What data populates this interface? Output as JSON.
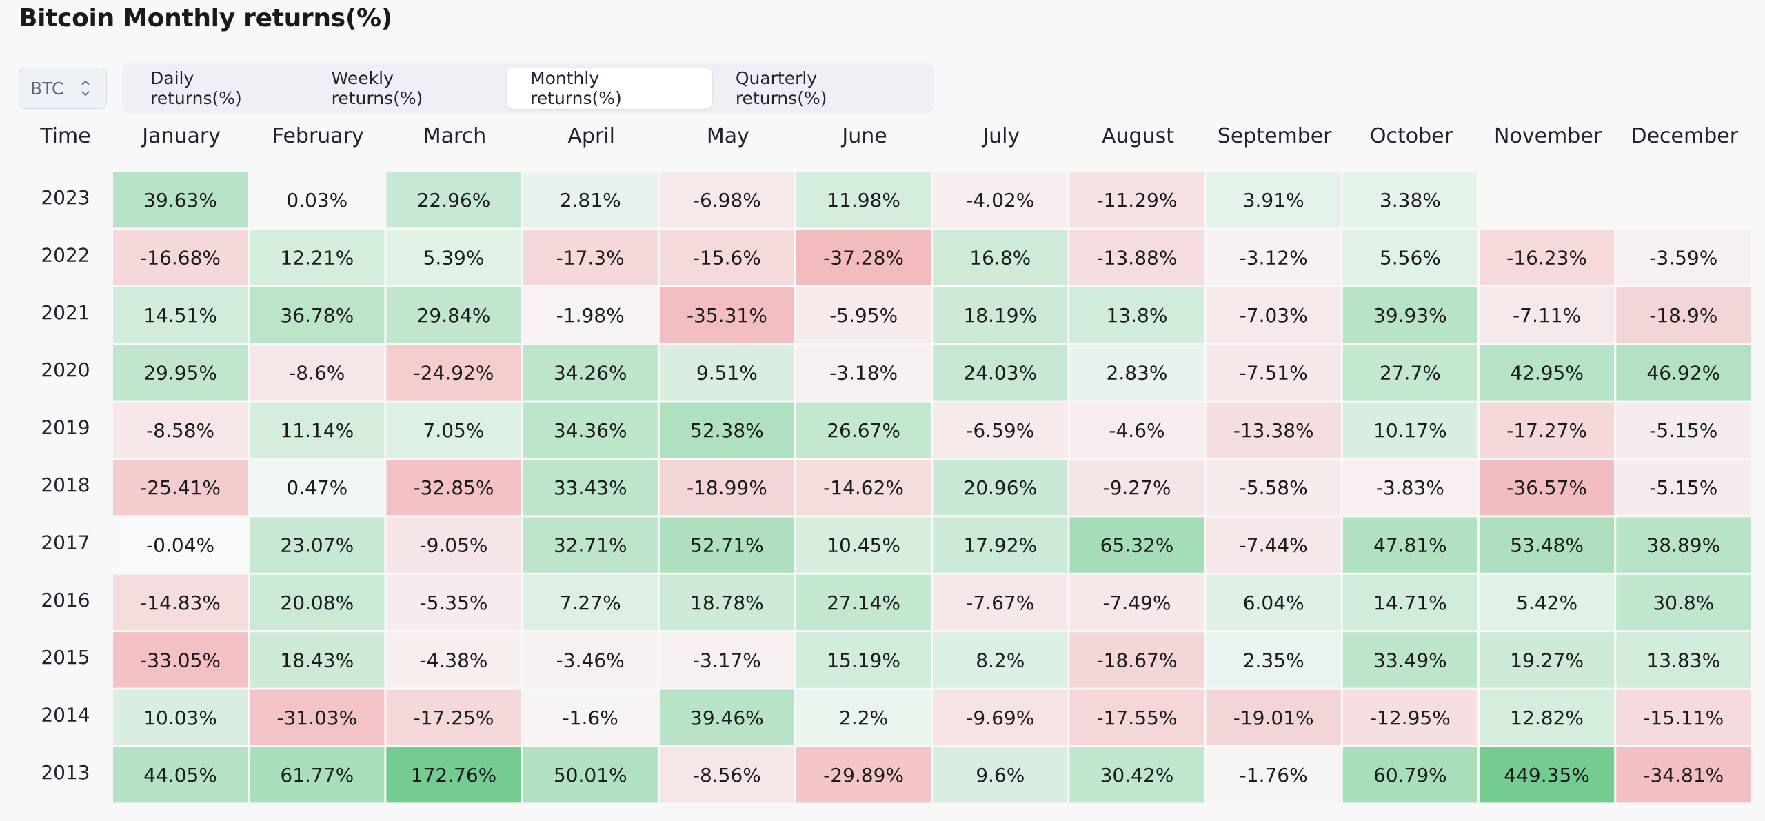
{
  "page": {
    "title": "Bitcoin Monthly returns(%)"
  },
  "asset_selector": {
    "value": "BTC",
    "icon": "chevron-up-down-icon"
  },
  "tabs": [
    {
      "label": "Daily returns(%)",
      "active": false
    },
    {
      "label": "Weekly returns(%)",
      "active": false
    },
    {
      "label": "Monthly returns(%)",
      "active": true
    },
    {
      "label": "Quarterly returns(%)",
      "active": false
    }
  ],
  "chart_data": {
    "type": "heatmap",
    "row_header": "Time",
    "columns": [
      "January",
      "February",
      "March",
      "April",
      "May",
      "June",
      "July",
      "August",
      "September",
      "October",
      "November",
      "December"
    ],
    "rows": [
      {
        "year": "2023",
        "values": [
          "39.63%",
          "0.03%",
          "22.96%",
          "2.81%",
          "-6.98%",
          "11.98%",
          "-4.02%",
          "-11.29%",
          "3.91%",
          "3.38%",
          null,
          null
        ]
      },
      {
        "year": "2022",
        "values": [
          "-16.68%",
          "12.21%",
          "5.39%",
          "-17.3%",
          "-15.6%",
          "-37.28%",
          "16.8%",
          "-13.88%",
          "-3.12%",
          "5.56%",
          "-16.23%",
          "-3.59%"
        ]
      },
      {
        "year": "2021",
        "values": [
          "14.51%",
          "36.78%",
          "29.84%",
          "-1.98%",
          "-35.31%",
          "-5.95%",
          "18.19%",
          "13.8%",
          "-7.03%",
          "39.93%",
          "-7.11%",
          "-18.9%"
        ]
      },
      {
        "year": "2020",
        "values": [
          "29.95%",
          "-8.6%",
          "-24.92%",
          "34.26%",
          "9.51%",
          "-3.18%",
          "24.03%",
          "2.83%",
          "-7.51%",
          "27.7%",
          "42.95%",
          "46.92%"
        ]
      },
      {
        "year": "2019",
        "values": [
          "-8.58%",
          "11.14%",
          "7.05%",
          "34.36%",
          "52.38%",
          "26.67%",
          "-6.59%",
          "-4.6%",
          "-13.38%",
          "10.17%",
          "-17.27%",
          "-5.15%"
        ]
      },
      {
        "year": "2018",
        "values": [
          "-25.41%",
          "0.47%",
          "-32.85%",
          "33.43%",
          "-18.99%",
          "-14.62%",
          "20.96%",
          "-9.27%",
          "-5.58%",
          "-3.83%",
          "-36.57%",
          "-5.15%"
        ]
      },
      {
        "year": "2017",
        "values": [
          "-0.04%",
          "23.07%",
          "-9.05%",
          "32.71%",
          "52.71%",
          "10.45%",
          "17.92%",
          "65.32%",
          "-7.44%",
          "47.81%",
          "53.48%",
          "38.89%"
        ]
      },
      {
        "year": "2016",
        "values": [
          "-14.83%",
          "20.08%",
          "-5.35%",
          "7.27%",
          "18.78%",
          "27.14%",
          "-7.67%",
          "-7.49%",
          "6.04%",
          "14.71%",
          "5.42%",
          "30.8%"
        ]
      },
      {
        "year": "2015",
        "values": [
          "-33.05%",
          "18.43%",
          "-4.38%",
          "-3.46%",
          "-3.17%",
          "15.19%",
          "8.2%",
          "-18.67%",
          "2.35%",
          "33.49%",
          "19.27%",
          "13.83%"
        ]
      },
      {
        "year": "2014",
        "values": [
          "10.03%",
          "-31.03%",
          "-17.25%",
          "-1.6%",
          "39.46%",
          "2.2%",
          "-9.69%",
          "-17.55%",
          "-19.01%",
          "-12.95%",
          "12.82%",
          "-15.11%"
        ]
      },
      {
        "year": "2013",
        "values": [
          "44.05%",
          "61.77%",
          "172.76%",
          "50.01%",
          "-8.56%",
          "-29.89%",
          "9.6%",
          "30.42%",
          "-1.76%",
          "60.79%",
          "449.35%",
          "-34.81%"
        ]
      }
    ],
    "colors": {
      "positive_max": "#74cc91",
      "negative_max": "#f2bcbf",
      "neutral": "#f8f9f9"
    }
  }
}
